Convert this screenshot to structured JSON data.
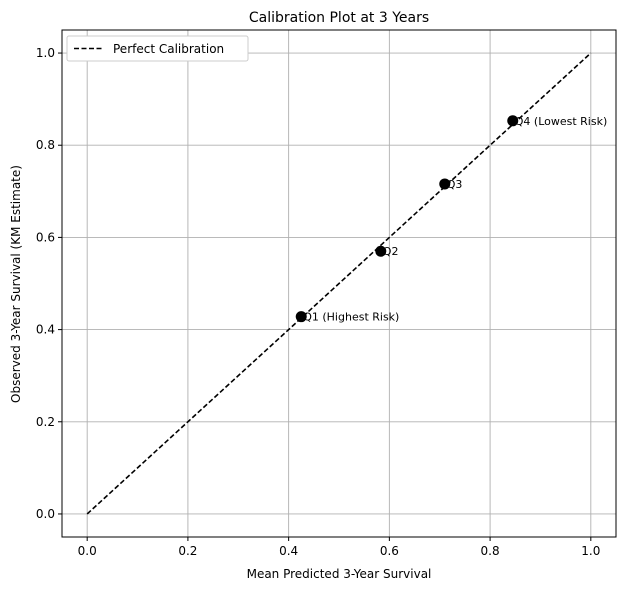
{
  "chart_data": {
    "type": "scatter",
    "title": "Calibration Plot at 3 Years",
    "xlabel": "Mean Predicted 3-Year Survival",
    "ylabel": "Observed 3-Year Survival (KM Estimate)",
    "xlim": [
      -0.05,
      1.05
    ],
    "ylim": [
      -0.05,
      1.05
    ],
    "xticks": [
      "0.0",
      "0.2",
      "0.4",
      "0.6",
      "0.8",
      "1.0"
    ],
    "yticks": [
      "0.0",
      "0.2",
      "0.4",
      "0.6",
      "0.8",
      "1.0"
    ],
    "grid": true,
    "legend_position": "top-left",
    "series": [
      {
        "name": "Perfect Calibration",
        "type": "line",
        "style": "dashed",
        "color": "#000000",
        "x": [
          0.0,
          1.0
        ],
        "y": [
          0.0,
          1.0
        ]
      },
      {
        "type": "scatter",
        "color": "#000000",
        "points": [
          {
            "label": "Q1 (Highest Risk)",
            "x": 0.425,
            "y": 0.428
          },
          {
            "label": "Q2",
            "x": 0.583,
            "y": 0.57
          },
          {
            "label": "Q3",
            "x": 0.71,
            "y": 0.716
          },
          {
            "label": "Q4 (Lowest Risk)",
            "x": 0.845,
            "y": 0.853
          }
        ]
      }
    ]
  }
}
